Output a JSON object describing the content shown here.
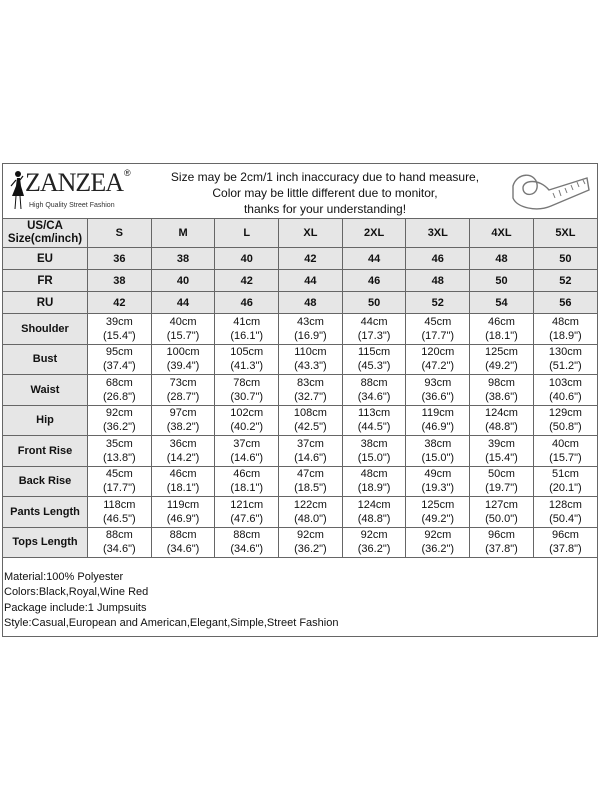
{
  "logo": {
    "brand": "ZANZEA",
    "registered": "®",
    "tagline": "High Quality Street Fashion"
  },
  "notice": [
    "Size may be 2cm/1 inch inaccuracy due to hand measure,",
    "Color may be little different due to monitor,",
    "thanks for your understanding!"
  ],
  "icons": {
    "logo": "woman-silhouette-icon",
    "tape": "measuring-tape-icon"
  },
  "header": {
    "label_line1": "US/CA",
    "label_line2": "Size(cm/inch)",
    "sizes": [
      "S",
      "M",
      "L",
      "XL",
      "2XL",
      "3XL",
      "4XL",
      "5XL"
    ]
  },
  "alt_sizes": [
    {
      "label": "EU",
      "values": [
        "36",
        "38",
        "40",
        "42",
        "44",
        "46",
        "48",
        "50"
      ]
    },
    {
      "label": "FR",
      "values": [
        "38",
        "40",
        "42",
        "44",
        "46",
        "48",
        "50",
        "52"
      ]
    },
    {
      "label": "RU",
      "values": [
        "42",
        "44",
        "46",
        "48",
        "50",
        "52",
        "54",
        "56"
      ]
    }
  ],
  "measurements": [
    {
      "label": "Shoulder",
      "cm": [
        "39cm",
        "40cm",
        "41cm",
        "43cm",
        "44cm",
        "45cm",
        "46cm",
        "48cm"
      ],
      "inch": [
        "(15.4\")",
        "(15.7\")",
        "(16.1\")",
        "(16.9\")",
        "(17.3\")",
        "(17.7\")",
        "(18.1\")",
        "(18.9\")"
      ]
    },
    {
      "label": "Bust",
      "cm": [
        "95cm",
        "100cm",
        "105cm",
        "110cm",
        "115cm",
        "120cm",
        "125cm",
        "130cm"
      ],
      "inch": [
        "(37.4\")",
        "(39.4\")",
        "(41.3\")",
        "(43.3\")",
        "(45.3\")",
        "(47.2\")",
        "(49.2\")",
        "(51.2\")"
      ]
    },
    {
      "label": "Waist",
      "cm": [
        "68cm",
        "73cm",
        "78cm",
        "83cm",
        "88cm",
        "93cm",
        "98cm",
        "103cm"
      ],
      "inch": [
        "(26.8\")",
        "(28.7\")",
        "(30.7\")",
        "(32.7\")",
        "(34.6\")",
        "(36.6\")",
        "(38.6\")",
        "(40.6\")"
      ]
    },
    {
      "label": "Hip",
      "cm": [
        "92cm",
        "97cm",
        "102cm",
        "108cm",
        "113cm",
        "119cm",
        "124cm",
        "129cm"
      ],
      "inch": [
        "(36.2\")",
        "(38.2\")",
        "(40.2\")",
        "(42.5\")",
        "(44.5\")",
        "(46.9\")",
        "(48.8\")",
        "(50.8\")"
      ]
    },
    {
      "label": "Front Rise",
      "cm": [
        "35cm",
        "36cm",
        "37cm",
        "37cm",
        "38cm",
        "38cm",
        "39cm",
        "40cm"
      ],
      "inch": [
        "(13.8\")",
        "(14.2\")",
        "(14.6\")",
        "(14.6\")",
        "(15.0\")",
        "(15.0\")",
        "(15.4\")",
        "(15.7\")"
      ]
    },
    {
      "label": "Back Rise",
      "cm": [
        "45cm",
        "46cm",
        "46cm",
        "47cm",
        "48cm",
        "49cm",
        "50cm",
        "51cm"
      ],
      "inch": [
        "(17.7\")",
        "(18.1\")",
        "(18.1\")",
        "(18.5\")",
        "(18.9\")",
        "(19.3\")",
        "(19.7\")",
        "(20.1\")"
      ]
    },
    {
      "label": "Pants Length",
      "cm": [
        "118cm",
        "119cm",
        "121cm",
        "122cm",
        "124cm",
        "125cm",
        "127cm",
        "128cm"
      ],
      "inch": [
        "(46.5\")",
        "(46.9\")",
        "(47.6\")",
        "(48.0\")",
        "(48.8\")",
        "(49.2\")",
        "(50.0\")",
        "(50.4\")"
      ]
    },
    {
      "label": "Tops Length",
      "cm": [
        "88cm",
        "88cm",
        "88cm",
        "92cm",
        "92cm",
        "92cm",
        "96cm",
        "96cm"
      ],
      "inch": [
        "(34.6\")",
        "(34.6\")",
        "(34.6\")",
        "(36.2\")",
        "(36.2\")",
        "(36.2\")",
        "(37.8\")",
        "(37.8\")"
      ]
    }
  ],
  "details": [
    "Material:100% Polyester",
    "Colors:Black,Royal,Wine Red",
    "Package include:1 Jumpsuits",
    "Style:Casual,European and American,Elegant,Simple,Street Fashion"
  ]
}
